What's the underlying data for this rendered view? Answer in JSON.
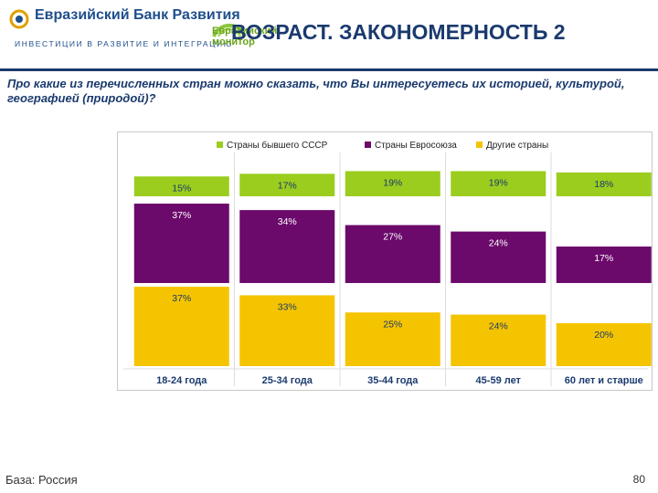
{
  "header": {
    "bank_name": "Евразийский Банк Развития",
    "bank_tagline": "ИНВЕСТИЦИИ В РАЗВИТИЕ И ИНТЕГРАЦИЮ",
    "monitor_line1": "Евразийский",
    "monitor_line2": "монитор",
    "title": "ВОЗРАСТ. ЗАКОНОМЕРНОСТЬ 2",
    "accent_color": "#1a3a6e"
  },
  "question": "Про какие из перечисленных стран можно сказать, что Вы интересуетесь их историей, культурой, географией (природой)?",
  "footer": {
    "base": "База: Россия",
    "page": "80"
  },
  "chart_data": {
    "type": "bar",
    "layout": "stacked-panels",
    "categories": [
      "18-24 года",
      "25-34 года",
      "35-44 года",
      "45-59 лет",
      "60 лет и старше"
    ],
    "series": [
      {
        "name": "Страны бывшего СССР",
        "color": "#9acd1e",
        "values": [
          15,
          17,
          19,
          19,
          18
        ]
      },
      {
        "name": "Страны Евросоюза",
        "color": "#6b0a6b",
        "values": [
          37,
          34,
          27,
          24,
          17
        ]
      },
      {
        "name": "Другие страны",
        "color": "#f5c400",
        "values": [
          37,
          33,
          25,
          24,
          20
        ]
      }
    ],
    "value_suffix": "%",
    "legend": "top",
    "grid": false
  }
}
